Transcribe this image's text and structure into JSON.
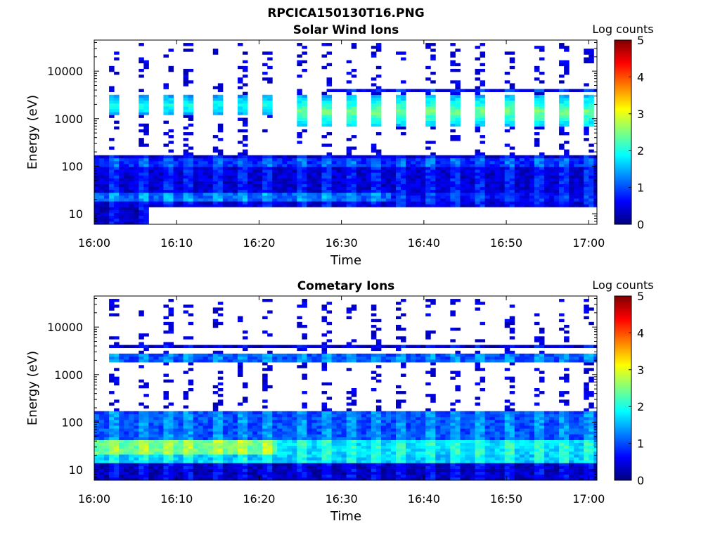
{
  "figure_title": "RPCICA150130T16.PNG",
  "colors": {
    "colormap": [
      "#00007f",
      "#0000ff",
      "#007fff",
      "#00ffff",
      "#7fff7f",
      "#ffff00",
      "#ff7f00",
      "#ff0000",
      "#7f0000"
    ],
    "axes_edge": "#000000",
    "background": "#ffffff"
  },
  "chart_data": [
    {
      "type": "heatmap",
      "title": "Solar Wind Ions",
      "xlabel": "Time",
      "ylabel": "Energy (eV)",
      "x_tick_labels": [
        "16:00",
        "16:10",
        "16:20",
        "16:30",
        "16:40",
        "16:50",
        "17:00"
      ],
      "x_ticks_minutes": [
        0,
        10,
        20,
        30,
        40,
        50,
        60
      ],
      "xlim_minutes": [
        0,
        61
      ],
      "y_scale": "log",
      "y_tick_labels": [
        "10",
        "100",
        "1000",
        "10000"
      ],
      "y_ticks": [
        10,
        100,
        1000,
        10000
      ],
      "ylim": [
        6,
        45000
      ],
      "colorbar": {
        "label": "Log counts",
        "range": [
          0,
          5
        ],
        "tick_labels": [
          "0",
          "1",
          "2",
          "3",
          "4",
          "5"
        ],
        "colormap": "jet"
      },
      "band_duration_minutes": 1.2,
      "strong_bands_centers_minutes": [
        2.6,
        5.7,
        8.8,
        11.5,
        15,
        18,
        21,
        25,
        28,
        31,
        34,
        37,
        41,
        44,
        47,
        50.5,
        54,
        57,
        60
      ],
      "rows": [
        {
          "energy_range": [
            6,
            14
          ],
          "time_range": [
            0,
            6.5
          ],
          "value": 0.3
        },
        {
          "energy_range": [
            14,
            18
          ],
          "time_range": [
            0,
            61
          ],
          "value": 0.4
        },
        {
          "energy_range": [
            18,
            28
          ],
          "time_range": [
            0,
            36
          ],
          "value": 1.1
        },
        {
          "energy_range": [
            18,
            28
          ],
          "time_range": [
            36,
            61
          ],
          "value": 0.6
        },
        {
          "energy_range": [
            28,
            180
          ],
          "time_range": [
            0,
            61
          ],
          "value": 0.4
        },
        {
          "energy_range": [
            100,
            150
          ],
          "time_range": [
            0,
            61
          ],
          "value": 0.8
        },
        {
          "energy_range": [
            3500,
            4500
          ],
          "time_range": [
            29,
            61
          ],
          "value": 0.5
        },
        {
          "energy_range": [
            650,
            3000
          ],
          "time_range_strong": [
            24,
            61
          ],
          "value_peak": 2.5
        },
        {
          "energy_range": [
            1200,
            3000
          ],
          "time_range_strong": [
            2,
            24
          ],
          "value_peak": 2.0
        }
      ]
    },
    {
      "type": "heatmap",
      "title": "Cometary Ions",
      "xlabel": "Time",
      "ylabel": "Energy (eV)",
      "x_tick_labels": [
        "16:00",
        "16:10",
        "16:20",
        "16:30",
        "16:40",
        "16:50",
        "17:00"
      ],
      "x_ticks_minutes": [
        0,
        10,
        20,
        30,
        40,
        50,
        60
      ],
      "xlim_minutes": [
        0,
        61
      ],
      "y_scale": "log",
      "y_tick_labels": [
        "10",
        "100",
        "1000",
        "10000"
      ],
      "y_ticks": [
        10,
        100,
        1000,
        10000
      ],
      "ylim": [
        6,
        45000
      ],
      "colorbar": {
        "label": "Log counts",
        "range": [
          0,
          5
        ],
        "tick_labels": [
          "0",
          "1",
          "2",
          "3",
          "4",
          "5"
        ],
        "colormap": "jet"
      },
      "band_duration_minutes": 1.2,
      "strong_bands_centers_minutes": [
        2.6,
        5.7,
        8.8,
        11.5,
        15,
        18,
        21,
        25,
        28,
        31,
        34,
        37,
        41,
        44,
        47,
        50.5,
        54,
        57,
        60
      ],
      "rows": [
        {
          "energy_range": [
            6,
            14
          ],
          "time_range": [
            0,
            61
          ],
          "value": 0.3
        },
        {
          "energy_range": [
            14,
            22
          ],
          "time_range": [
            0,
            61
          ],
          "value": 1.6
        },
        {
          "energy_range": [
            22,
            40
          ],
          "time_range": [
            0,
            22
          ],
          "value": 2.4
        },
        {
          "energy_range": [
            22,
            40
          ],
          "time_range": [
            22,
            61
          ],
          "value": 1.7
        },
        {
          "energy_range": [
            40,
            180
          ],
          "time_range": [
            0,
            61
          ],
          "value": 1.0
        },
        {
          "energy_range": [
            1800,
            2600
          ],
          "time_range": [
            2,
            61
          ],
          "value": 1.0
        },
        {
          "energy_range": [
            3500,
            4500
          ],
          "time_range": [
            2,
            61
          ],
          "value": 0.3
        }
      ]
    }
  ]
}
